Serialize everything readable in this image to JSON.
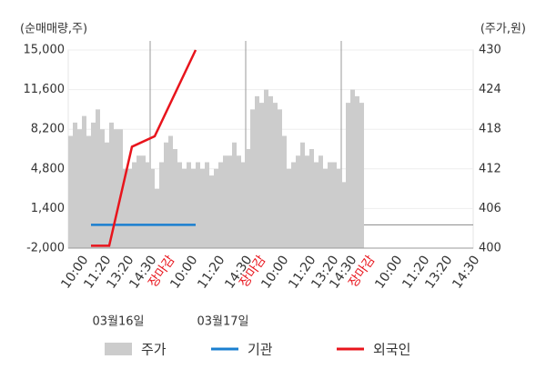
{
  "chart_data": {
    "type": "combo",
    "y_label": "(순매매량,주)",
    "y2_label": "(주가,원)",
    "ylim": [
      -2000,
      15000
    ],
    "yticks": [
      {
        "value": -2000,
        "label": "-2,000"
      },
      {
        "value": 1400,
        "label": "1,400"
      },
      {
        "value": 4800,
        "label": "4,800"
      },
      {
        "value": 8200,
        "label": "8,200"
      },
      {
        "value": 11600,
        "label": "11,600"
      },
      {
        "value": 15000,
        "label": "15,000"
      }
    ],
    "y2lim": [
      400,
      430
    ],
    "y2ticks": [
      400,
      406,
      412,
      418,
      424,
      430
    ],
    "xlim": [
      0,
      89
    ],
    "xticks": [
      {
        "value": 3,
        "label": "10:00"
      },
      {
        "value": 8,
        "label": "11:20"
      },
      {
        "value": 13,
        "label": "13:20"
      },
      {
        "value": 18,
        "label": "14:30"
      },
      {
        "value": 22,
        "label": "장마감",
        "color": "#e8141c"
      },
      {
        "value": 27,
        "label": "10:00"
      },
      {
        "value": 33,
        "label": "11:20"
      },
      {
        "value": 39,
        "label": "14:30"
      },
      {
        "value": 42,
        "label": "장마감",
        "color": "#e8141c"
      },
      {
        "value": 47,
        "label": "10:00"
      },
      {
        "value": 53,
        "label": "11:20"
      },
      {
        "value": 58,
        "label": "13:20"
      },
      {
        "value": 62,
        "label": "14:30"
      },
      {
        "value": 66,
        "label": "장마감",
        "color": "#e8141c"
      },
      {
        "value": 72,
        "label": "10:00"
      },
      {
        "value": 78,
        "label": "11:20"
      },
      {
        "value": 83,
        "label": "13:20"
      },
      {
        "value": 89,
        "label": "14:30"
      }
    ],
    "xgrid": [
      18,
      39,
      60
    ],
    "dates": [
      {
        "value": 11,
        "label": "03월16일"
      },
      {
        "value": 34,
        "label": "03월17일"
      }
    ],
    "series": [
      {
        "name": "주가",
        "kind": "area",
        "axis": "y2",
        "color": "#cccccc",
        "x": [
          0,
          1,
          2,
          3,
          4,
          5,
          6,
          7,
          8,
          9,
          10,
          11,
          12,
          13,
          14,
          15,
          16,
          17,
          18,
          19,
          20,
          21,
          22,
          23,
          24,
          25,
          26,
          27,
          28,
          29,
          30,
          31,
          32,
          33,
          34,
          35,
          36,
          37,
          38,
          39,
          40,
          41,
          42,
          43,
          44,
          45,
          46,
          47,
          48,
          49,
          50,
          51,
          52,
          53,
          54,
          55,
          56,
          57,
          58,
          59,
          60,
          61,
          62,
          63,
          64
        ],
        "values": [
          417,
          419,
          418,
          420,
          417,
          419,
          421,
          418,
          416,
          419,
          418,
          418,
          412,
          412,
          413,
          414,
          414,
          413,
          412,
          409,
          413,
          416,
          417,
          415,
          413,
          412,
          413,
          412,
          413,
          412,
          413,
          411,
          412,
          413,
          414,
          414,
          416,
          414,
          413,
          415,
          421,
          423,
          422,
          424,
          423,
          422,
          421,
          417,
          412,
          413,
          414,
          416,
          414,
          415,
          413,
          414,
          412,
          413,
          413,
          412,
          410,
          422,
          424,
          423,
          422
        ]
      },
      {
        "name": "기관",
        "kind": "line",
        "color": "#1a7fd0",
        "x": [
          5,
          28
        ],
        "values": [
          0,
          0
        ]
      },
      {
        "name": "외국인",
        "kind": "line",
        "color": "#e8141c",
        "x": [
          5,
          9,
          14,
          19,
          28
        ],
        "values": [
          -1800,
          -1800,
          6700,
          7600,
          15000
        ]
      }
    ]
  }
}
